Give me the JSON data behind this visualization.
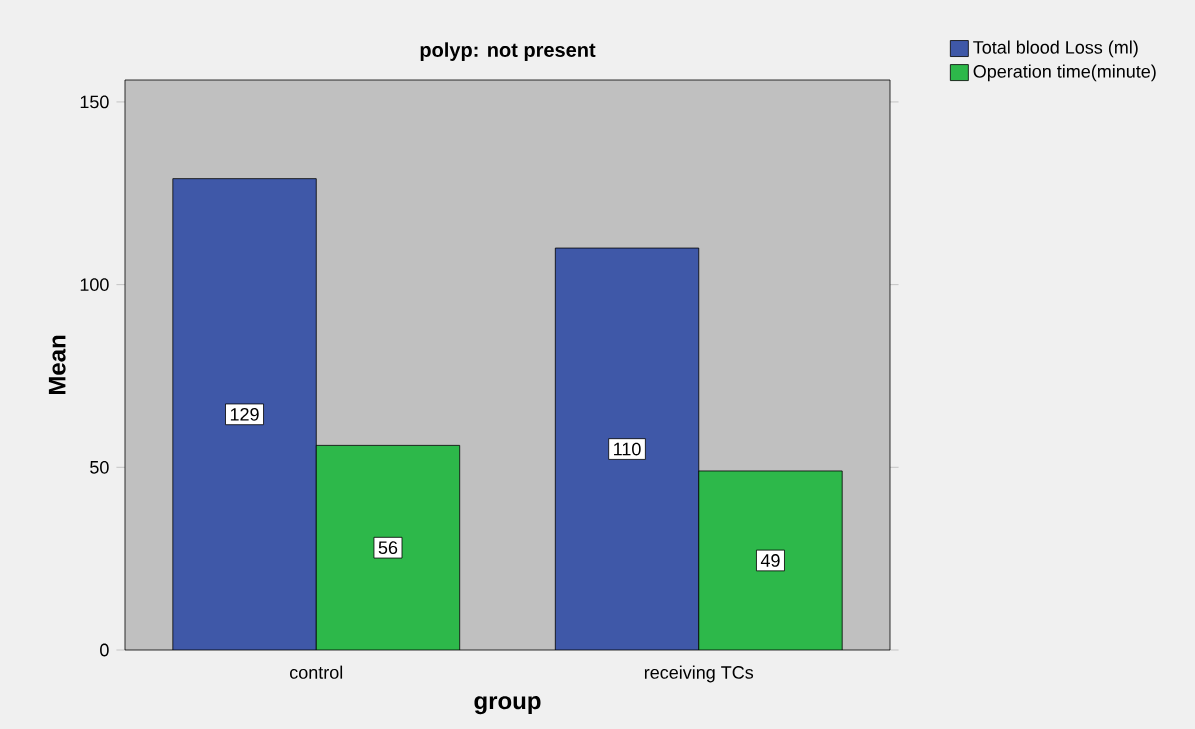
{
  "chart_data": {
    "type": "bar",
    "title": "polyp: not present",
    "xlabel": "group",
    "ylabel": "Mean",
    "categories": [
      "control",
      "receiving TCs"
    ],
    "series": [
      {
        "name": "Total blood Loss (ml)",
        "color": "#3f58a8",
        "values": [
          129,
          110
        ]
      },
      {
        "name": "Operation time(minute)",
        "color": "#2db84a",
        "values": [
          56,
          49
        ]
      }
    ],
    "ylim": [
      0,
      156
    ],
    "yticks": [
      0,
      50,
      100,
      150
    ],
    "grid": false,
    "legend": "top right",
    "data_labels": true
  }
}
